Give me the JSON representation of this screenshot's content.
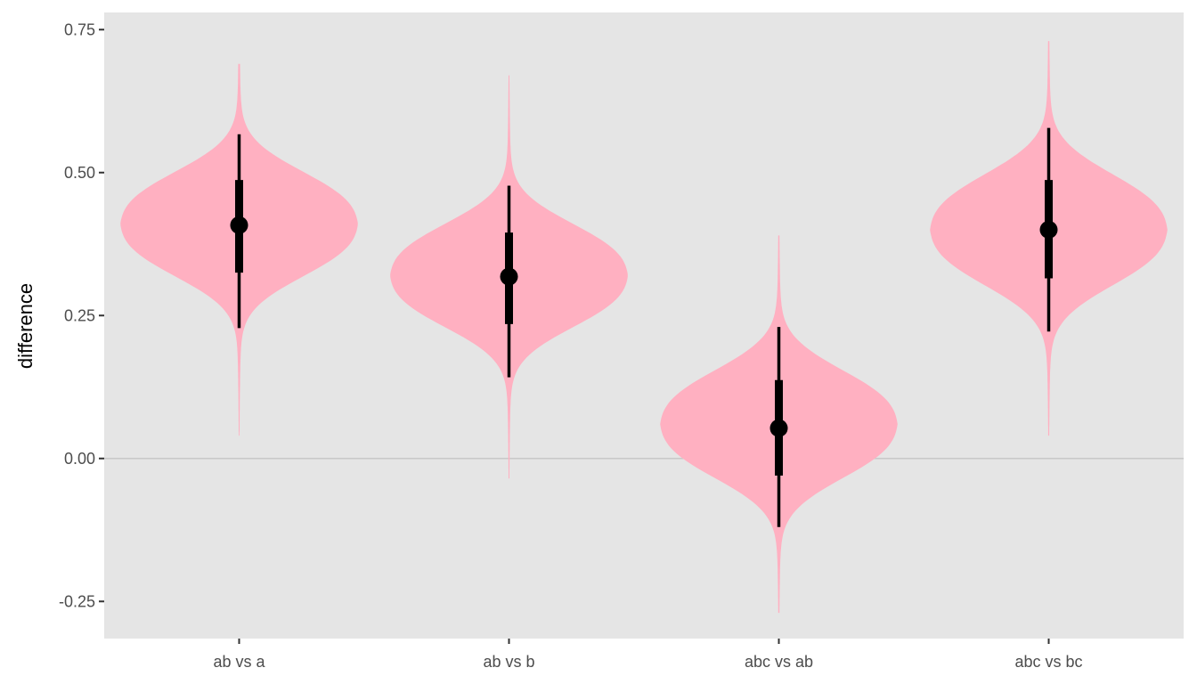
{
  "chart_data": {
    "type": "violin",
    "title": "",
    "xlabel": "",
    "ylabel": "difference",
    "ylim": [
      -0.315,
      0.78
    ],
    "yticks": [
      -0.25,
      0.0,
      0.25,
      0.5,
      0.75
    ],
    "ytick_labels": [
      "-0.25",
      "0.00",
      "0.25",
      "0.50",
      "0.75"
    ],
    "categories": [
      "ab vs a",
      "ab vs b",
      "abc vs ab",
      "abc vs bc"
    ],
    "reference_line": 0.0,
    "grid": false,
    "violin_color": "#FFB0C1",
    "panel_color": "#E5E5E5",
    "reference_line_color": "#C8C8C8",
    "interval_color": "#000000",
    "violins": [
      {
        "category": "ab vs a",
        "mode": 0.41,
        "median": 0.408,
        "interval_66": [
          0.325,
          0.487
        ],
        "interval_95": [
          0.228,
          0.567
        ],
        "range": [
          0.04,
          0.69
        ]
      },
      {
        "category": "ab vs b",
        "mode": 0.32,
        "median": 0.318,
        "interval_66": [
          0.235,
          0.395
        ],
        "interval_95": [
          0.142,
          0.477
        ],
        "range": [
          -0.035,
          0.67
        ]
      },
      {
        "category": "abc vs ab",
        "mode": 0.06,
        "median": 0.053,
        "interval_66": [
          -0.03,
          0.137
        ],
        "interval_95": [
          -0.12,
          0.23
        ],
        "range": [
          -0.27,
          0.39
        ]
      },
      {
        "category": "abc vs bc",
        "mode": 0.4,
        "median": 0.4,
        "interval_66": [
          0.315,
          0.487
        ],
        "interval_95": [
          0.222,
          0.578
        ],
        "range": [
          0.04,
          0.73
        ]
      }
    ]
  }
}
